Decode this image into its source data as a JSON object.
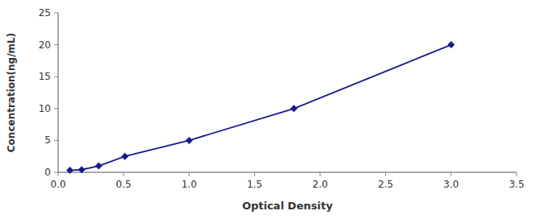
{
  "chart_data": {
    "type": "line",
    "x": [
      0.09,
      0.18,
      0.31,
      0.51,
      1.0,
      1.8,
      3.0
    ],
    "values": [
      0.31,
      0.41,
      1.0,
      2.5,
      5.0,
      10.0,
      20.0
    ],
    "color": "#1a1a8c",
    "marker": "diamond",
    "xlabel": "Optical Density",
    "ylabel": "Concentration(ng/mL)",
    "xlim": [
      0,
      3.5
    ],
    "ylim": [
      0,
      25
    ],
    "xticks": [
      {
        "value": 0,
        "label": "0.0"
      },
      0.5,
      {
        "value": 1.0,
        "label": "1.0"
      },
      1.5,
      {
        "value": 2.0,
        "label": "2.0"
      },
      2.5,
      {
        "value": 3.0,
        "label": "3.0"
      },
      3.5
    ],
    "yticks": [
      0,
      5,
      10,
      15,
      20,
      25
    ],
    "grid": false
  }
}
